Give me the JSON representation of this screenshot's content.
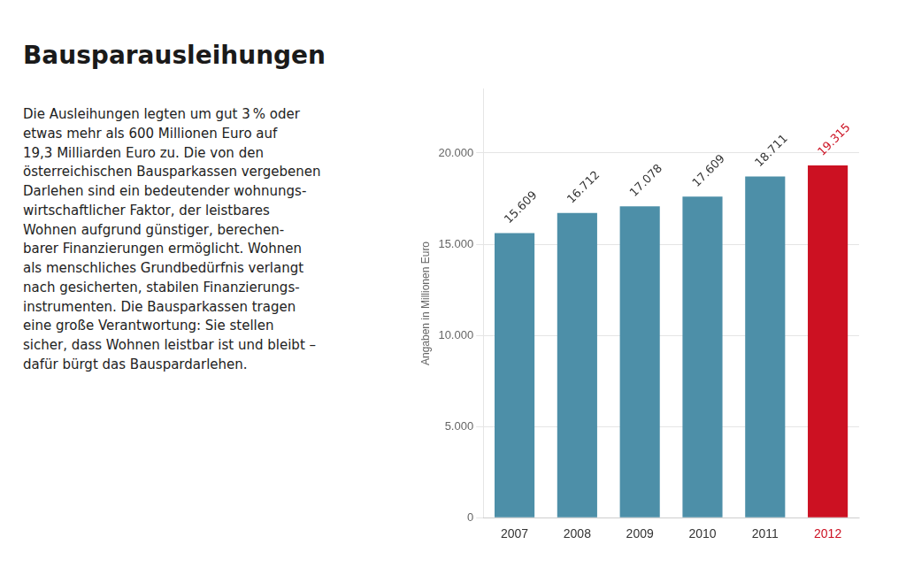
{
  "chart_data": {
    "type": "bar",
    "title": "Bausparausleihungen",
    "annotations": [
      "Die Ausleihungen legten um gut 3 % oder\netwas mehr als 600 Millionen Euro auf\n19,3 Milliarden Euro zu. Die von den\nösterreichischen Bausparkassen vergebenen\nDarlehen sind ein bedeutender wohnungs-\nwirtschaftlicher Faktor, der leistbares\nWohnen aufgrund günstiger, berechen-\nbarer Finanzierungen ermöglicht. Wohnen\nals menschliches Grundbedürfnis verlangt\nnach gesicherten, stabilen Finanzierungs-\ninstrumenten. Die Bausparkassen tragen\neine große Verantwortung: Sie stellen\nsicher, dass Wohnen leistbar ist und bleibt –\ndafür bürgt das Bauspardarlehen."
    ],
    "categories": [
      "2007",
      "2008",
      "2009",
      "2010",
      "2011",
      "2012"
    ],
    "values": [
      15609,
      16712,
      17078,
      17609,
      18711,
      19315
    ],
    "value_labels": [
      "15.609",
      "16.712",
      "17.078",
      "17.609",
      "18.711",
      "19.315"
    ],
    "colors": [
      "#4d8fa8",
      "#4d8fa8",
      "#4d8fa8",
      "#4d8fa8",
      "#4d8fa8",
      "#cc1122"
    ],
    "ylabel": "Angaben in Millionen Euro",
    "ylim": [
      0,
      23500
    ],
    "yticks": [
      0,
      {
        "value": 5000,
        "label": "5.000"
      },
      {
        "value": 10000,
        "label": "10.000"
      },
      {
        "value": 15000,
        "label": "15.000"
      },
      {
        "value": 20000,
        "label": "20.000"
      }
    ],
    "grid": true,
    "data_labels": true
  }
}
